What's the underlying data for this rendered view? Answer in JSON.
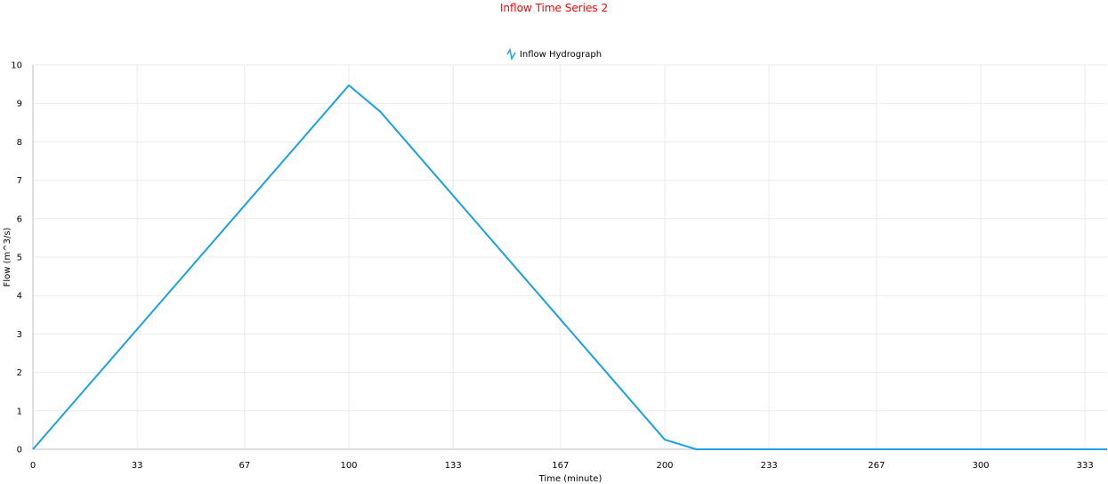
{
  "chart_data": {
    "type": "line",
    "title": "Inflow Time Series 2",
    "xlabel": "Time (minute)",
    "ylabel": "Flow (m^3/s)",
    "xlim": [
      0,
      340
    ],
    "ylim": [
      0,
      10
    ],
    "x_ticks": [
      "0",
      "33",
      "67",
      "100",
      "133",
      "167",
      "200",
      "233",
      "267",
      "300",
      "333"
    ],
    "y_ticks": [
      "0",
      "1",
      "2",
      "3",
      "4",
      "5",
      "6",
      "7",
      "8",
      "9",
      "10"
    ],
    "grid": true,
    "legend_position": "top-center",
    "series": [
      {
        "name": "Inflow Hydrograph",
        "color": "#1ba1e2",
        "x": [
          0,
          100,
          110,
          200,
          210,
          340
        ],
        "y": [
          0,
          9.47,
          8.78,
          0.25,
          0,
          0
        ]
      }
    ]
  }
}
